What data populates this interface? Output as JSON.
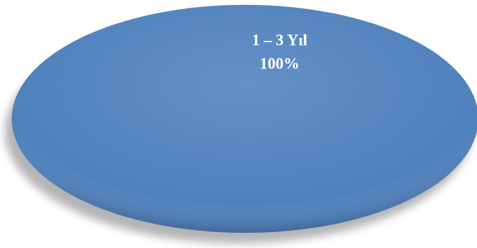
{
  "chart_data": {
    "type": "pie",
    "categories": [
      "1 – 3 Yıl"
    ],
    "values": [
      100
    ],
    "value_labels": [
      "100%"
    ],
    "colors": [
      "#4f81bd"
    ]
  }
}
